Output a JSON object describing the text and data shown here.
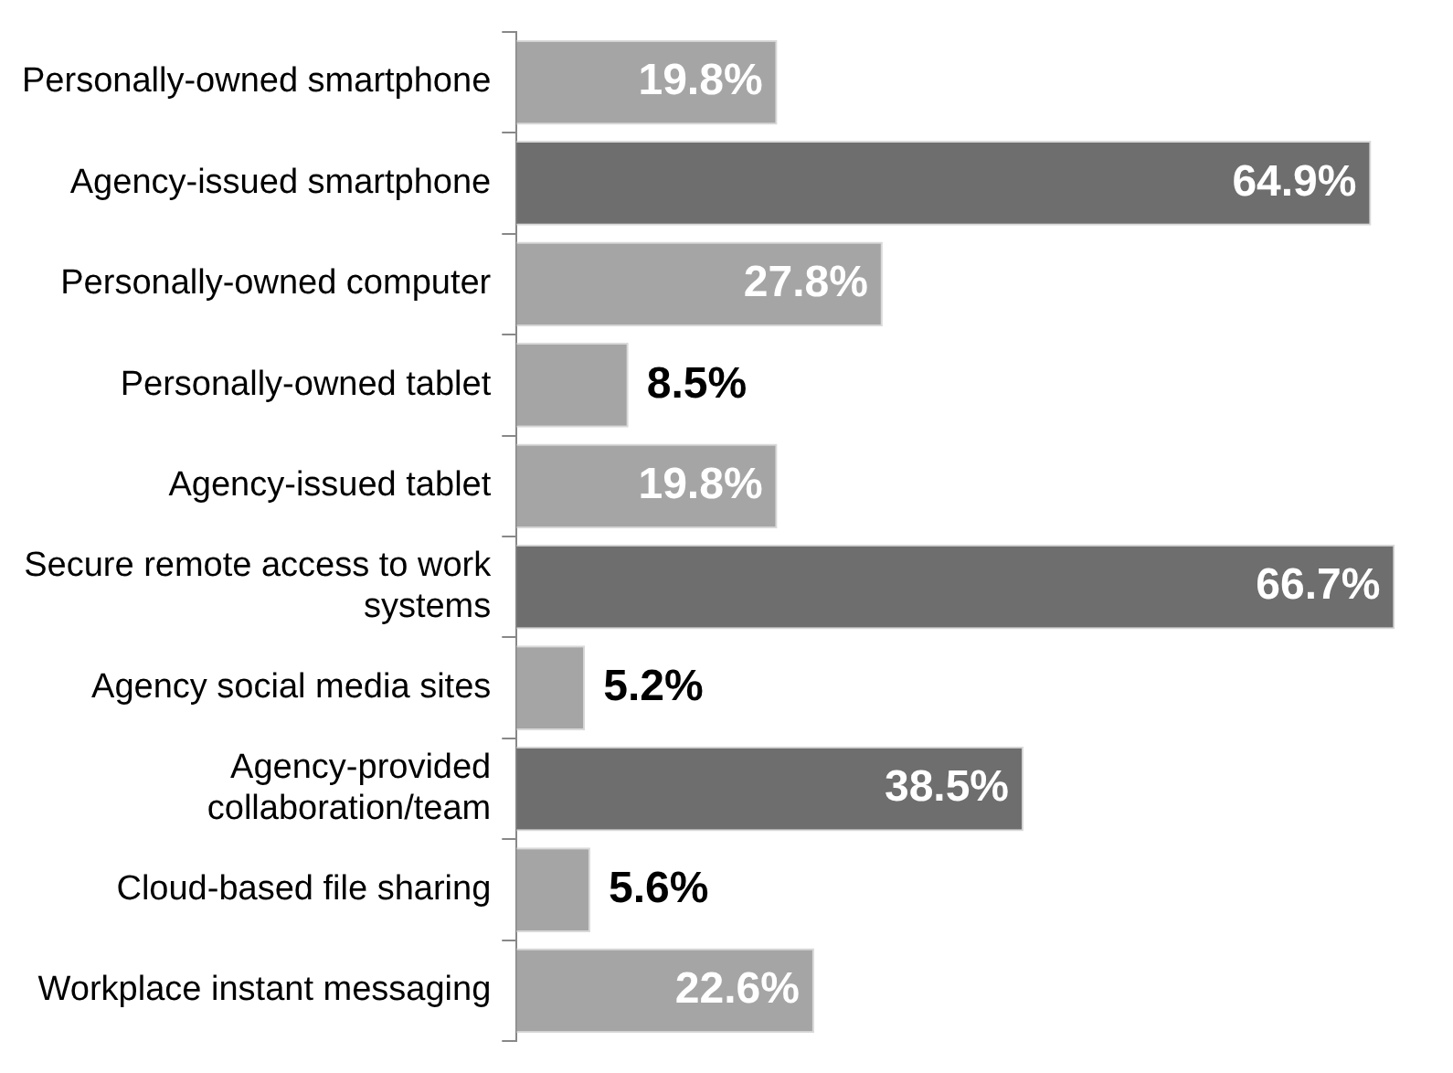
{
  "chart_data": {
    "type": "bar",
    "orientation": "horizontal",
    "legend": false,
    "categories": [
      "Personally-owned smartphone",
      "Agency-issued smartphone",
      "Personally-owned computer",
      "Personally-owned tablet",
      "Agency-issued tablet",
      "Secure remote access to work systems",
      "Agency social media sites",
      "Agency-provided collaboration/team",
      "Cloud-based file sharing",
      "Workplace instant messaging"
    ],
    "values": [
      19.8,
      64.9,
      27.8,
      8.5,
      19.8,
      66.7,
      5.2,
      38.5,
      5.6,
      22.6
    ],
    "value_labels": [
      "19.8%",
      "64.9%",
      "27.8%",
      "8.5%",
      "19.8%",
      "66.7%",
      "5.2%",
      "38.5%",
      "5.6%",
      "22.6%"
    ],
    "colors": [
      "#a5a5a5",
      "#6e6e6e",
      "#a5a5a5",
      "#a5a5a5",
      "#a5a5a5",
      "#6e6e6e",
      "#a5a5a5",
      "#6e6e6e",
      "#a5a5a5",
      "#a5a5a5"
    ]
  }
}
